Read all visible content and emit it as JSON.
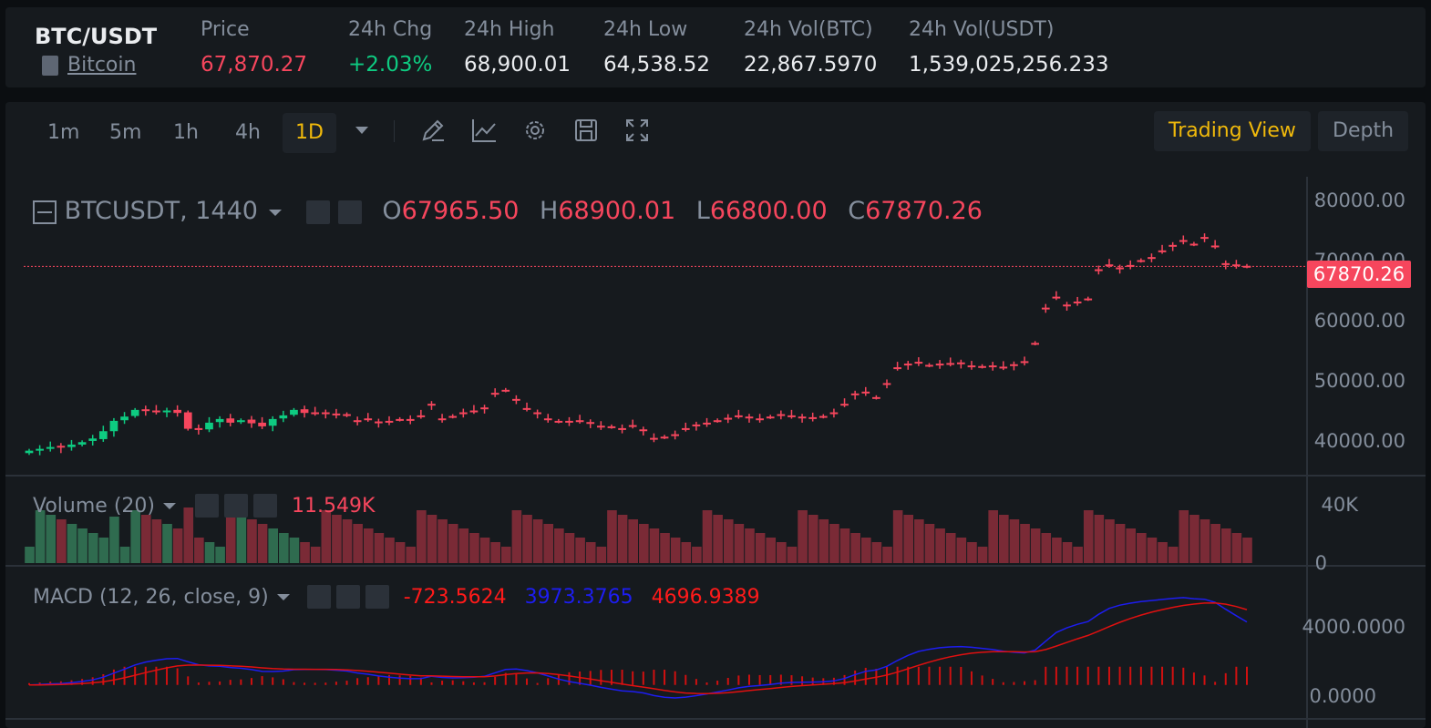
{
  "ticker": {
    "symbol": "BTC/USDT",
    "coin_name": "Bitcoin",
    "stats": [
      {
        "label": "Price",
        "value": "67,870.27",
        "color": "#f6465d"
      },
      {
        "label": "24h Chg",
        "value": "+2.03%",
        "color": "#0ecb81"
      },
      {
        "label": "24h High",
        "value": "68,900.01",
        "color": "#eaecef"
      },
      {
        "label": "24h Low",
        "value": "64,538.52",
        "color": "#eaecef"
      },
      {
        "label": "24h Vol(BTC)",
        "value": "22,867.5970",
        "color": "#eaecef"
      },
      {
        "label": "24h Vol(USDT)",
        "value": "1,539,025,256.233",
        "color": "#eaecef"
      }
    ]
  },
  "toolbar": {
    "timeframes": [
      "1m",
      "5m",
      "1h",
      "4h",
      "1D"
    ],
    "active_timeframe": "1D",
    "icons": [
      "pencil-icon",
      "line-chart-icon",
      "gear-icon",
      "save-icon",
      "fullscreen-icon"
    ],
    "trading_view_label": "Trading View",
    "depth_label": "Depth"
  },
  "main_legend": {
    "title": "BTCUSDT, 1440",
    "o_label": "O",
    "o_value": "67965.50",
    "h_label": "H",
    "h_value": "68900.01",
    "l_label": "L",
    "l_value": "66800.00",
    "c_label": "C",
    "c_value": "67870.26"
  },
  "price_axis": [
    "80000.00",
    "70000.00",
    "60000.00",
    "50000.00",
    "40000.00"
  ],
  "last_price_tag": "67870.26",
  "volume_legend": {
    "title": "Volume (20)",
    "value": "11.549K"
  },
  "volume_axis": [
    "40K",
    "0"
  ],
  "macd_legend": {
    "title": "MACD (12, 26, close, 9)",
    "hist": "-723.5624",
    "macd": "3973.3765",
    "signal": "4696.9389"
  },
  "macd_axis": [
    "4000.0000",
    "0.0000"
  ],
  "colors": {
    "up": "#0ecb81",
    "down": "#f6465d",
    "accent": "#f0b90b",
    "macd_line": "#1d1df0",
    "signal_line": "#e01010"
  },
  "chart_data": {
    "type": "candlestick",
    "ylim": [
      35000,
      82000
    ],
    "closes": [
      37600,
      37900,
      38200,
      38100,
      38600,
      39000,
      39600,
      40800,
      42500,
      43200,
      44300,
      44100,
      44000,
      44200,
      43800,
      41200,
      41000,
      42200,
      42800,
      42200,
      42600,
      42100,
      41600,
      42800,
      43400,
      44300,
      43800,
      43800,
      43800,
      43500,
      43400,
      42500,
      42800,
      42300,
      42400,
      42700,
      42700,
      43300,
      45200,
      42800,
      43200,
      43800,
      44100,
      44600,
      47000,
      47500,
      46000,
      44500,
      43800,
      42800,
      42400,
      42400,
      42500,
      42200,
      41600,
      41500,
      41200,
      41700,
      41000,
      39600,
      39800,
      40200,
      41200,
      41800,
      42100,
      42500,
      42900,
      43300,
      43100,
      42800,
      43100,
      43500,
      43300,
      43100,
      43000,
      43200,
      43800,
      45200,
      46900,
      47200,
      46300,
      48600,
      51200,
      51800,
      52100,
      51600,
      51800,
      51900,
      52000,
      51500,
      51400,
      51500,
      51300,
      51700,
      52200,
      55200,
      61000,
      62800,
      61500,
      62000,
      62500,
      67300,
      68100,
      67600,
      68000,
      68800,
      69300,
      70400,
      71300,
      72100,
      71500,
      72600,
      71200,
      68300,
      68100,
      67870
    ],
    "opens": [
      37200,
      37600,
      37900,
      38400,
      38200,
      38600,
      39200,
      39500,
      40800,
      42600,
      43300,
      44400,
      44200,
      44000,
      44300,
      43900,
      41300,
      41100,
      42300,
      42900,
      42300,
      42700,
      42200,
      41700,
      42900,
      43500,
      44400,
      43900,
      43900,
      43700,
      43600,
      42600,
      42900,
      42400,
      42500,
      42800,
      42800,
      43400,
      45300,
      42900,
      43300,
      43900,
      44200,
      44700,
      47100,
      47600,
      46100,
      44600,
      43900,
      42900,
      42500,
      42500,
      42600,
      42300,
      41700,
      41600,
      41300,
      41800,
      41100,
      39700,
      39900,
      40300,
      41300,
      41900,
      42200,
      42600,
      43000,
      43400,
      43200,
      42900,
      43200,
      43600,
      43400,
      43200,
      43100,
      43300,
      43900,
      45300,
      47000,
      47300,
      46400,
      48700,
      51300,
      51900,
      52200,
      51700,
      51900,
      52000,
      52100,
      51600,
      51500,
      51600,
      51400,
      51800,
      52300,
      55300,
      61100,
      62900,
      61600,
      62100,
      62600,
      67400,
      68200,
      67700,
      68100,
      68900,
      69400,
      70500,
      71400,
      72200,
      71600,
      72700,
      71300,
      68400,
      68200,
      67965
    ]
  }
}
